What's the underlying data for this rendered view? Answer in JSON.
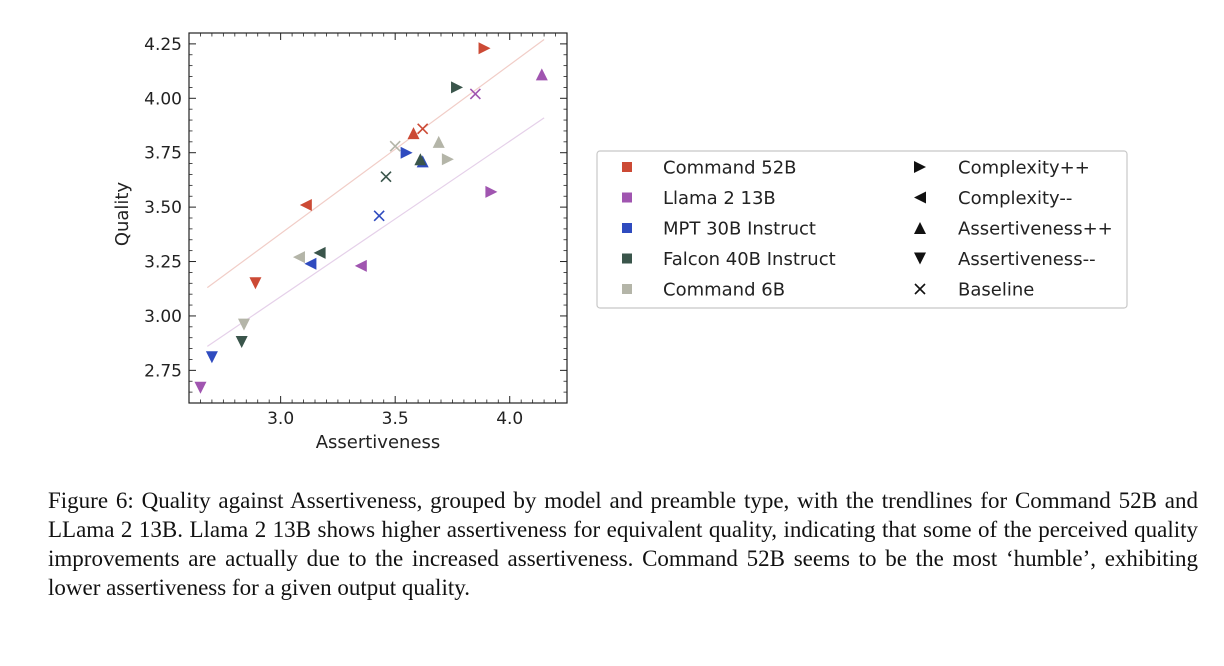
{
  "chart_data": {
    "type": "scatter",
    "xlabel": "Assertiveness",
    "ylabel": "Quality",
    "xlim": [
      2.6,
      4.25
    ],
    "ylim": [
      2.6,
      4.3
    ],
    "xticks": [
      3.0,
      3.5,
      4.0
    ],
    "xtick_labels": [
      "3.0",
      "3.5",
      "4.0"
    ],
    "yticks": [
      2.75,
      3.0,
      3.25,
      3.5,
      3.75,
      4.0,
      4.25
    ],
    "ytick_labels": [
      "2.75",
      "3.00",
      "3.25",
      "3.50",
      "3.75",
      "4.00",
      "4.25"
    ],
    "legend_placement": "right",
    "models": [
      {
        "name": "Command 52B",
        "color": "#cc4a35"
      },
      {
        "name": "Llama 2 13B",
        "color": "#a055b0"
      },
      {
        "name": "MPT 30B Instruct",
        "color": "#2f4bbf"
      },
      {
        "name": "Falcon 40B Instruct",
        "color": "#3a554b"
      },
      {
        "name": "Command 6B",
        "color": "#b4b5a8"
      }
    ],
    "markers": [
      {
        "name": "Complexity++",
        "shape": "tri-right"
      },
      {
        "name": "Complexity--",
        "shape": "tri-left"
      },
      {
        "name": "Assertiveness++",
        "shape": "tri-up"
      },
      {
        "name": "Assertiveness--",
        "shape": "tri-down"
      },
      {
        "name": "Baseline",
        "shape": "x"
      }
    ],
    "points": [
      {
        "model": 0,
        "marker": 0,
        "x": 3.89,
        "y": 4.23
      },
      {
        "model": 0,
        "marker": 1,
        "x": 3.11,
        "y": 3.51
      },
      {
        "model": 0,
        "marker": 2,
        "x": 3.58,
        "y": 3.84
      },
      {
        "model": 0,
        "marker": 3,
        "x": 2.89,
        "y": 3.15
      },
      {
        "model": 0,
        "marker": 4,
        "x": 3.62,
        "y": 3.86
      },
      {
        "model": 1,
        "marker": 0,
        "x": 3.92,
        "y": 3.57
      },
      {
        "model": 1,
        "marker": 1,
        "x": 3.35,
        "y": 3.23
      },
      {
        "model": 1,
        "marker": 2,
        "x": 4.14,
        "y": 4.11
      },
      {
        "model": 1,
        "marker": 3,
        "x": 2.65,
        "y": 2.67
      },
      {
        "model": 1,
        "marker": 4,
        "x": 3.85,
        "y": 4.02
      },
      {
        "model": 2,
        "marker": 0,
        "x": 3.55,
        "y": 3.75
      },
      {
        "model": 2,
        "marker": 1,
        "x": 3.13,
        "y": 3.24
      },
      {
        "model": 2,
        "marker": 2,
        "x": 3.62,
        "y": 3.71
      },
      {
        "model": 2,
        "marker": 3,
        "x": 2.7,
        "y": 2.81
      },
      {
        "model": 2,
        "marker": 4,
        "x": 3.43,
        "y": 3.46
      },
      {
        "model": 3,
        "marker": 0,
        "x": 3.77,
        "y": 4.05
      },
      {
        "model": 3,
        "marker": 1,
        "x": 3.17,
        "y": 3.29
      },
      {
        "model": 3,
        "marker": 2,
        "x": 3.61,
        "y": 3.72
      },
      {
        "model": 3,
        "marker": 3,
        "x": 2.83,
        "y": 2.88
      },
      {
        "model": 3,
        "marker": 4,
        "x": 3.46,
        "y": 3.64
      },
      {
        "model": 4,
        "marker": 0,
        "x": 3.73,
        "y": 3.72
      },
      {
        "model": 4,
        "marker": 1,
        "x": 3.08,
        "y": 3.27
      },
      {
        "model": 4,
        "marker": 2,
        "x": 3.69,
        "y": 3.8
      },
      {
        "model": 4,
        "marker": 3,
        "x": 2.84,
        "y": 2.96
      },
      {
        "model": 4,
        "marker": 4,
        "x": 3.5,
        "y": 3.78
      }
    ],
    "trendlines": [
      {
        "model": 0,
        "x": [
          2.68,
          4.15
        ],
        "y": [
          3.13,
          4.27
        ]
      },
      {
        "model": 1,
        "x": [
          2.68,
          4.15
        ],
        "y": [
          2.86,
          3.91
        ]
      }
    ]
  },
  "caption": "Figure 6: Quality against Assertiveness, grouped by model and preamble type, with the trendlines for Command 52B and LLama 2 13B. Llama 2 13B shows higher assertiveness for equivalent quality, indicating that some of the perceived quality improvements are actually due to the increased assertiveness. Command 52B seems to be the most ‘humble’, exhibiting lower assertiveness for a given output quality."
}
